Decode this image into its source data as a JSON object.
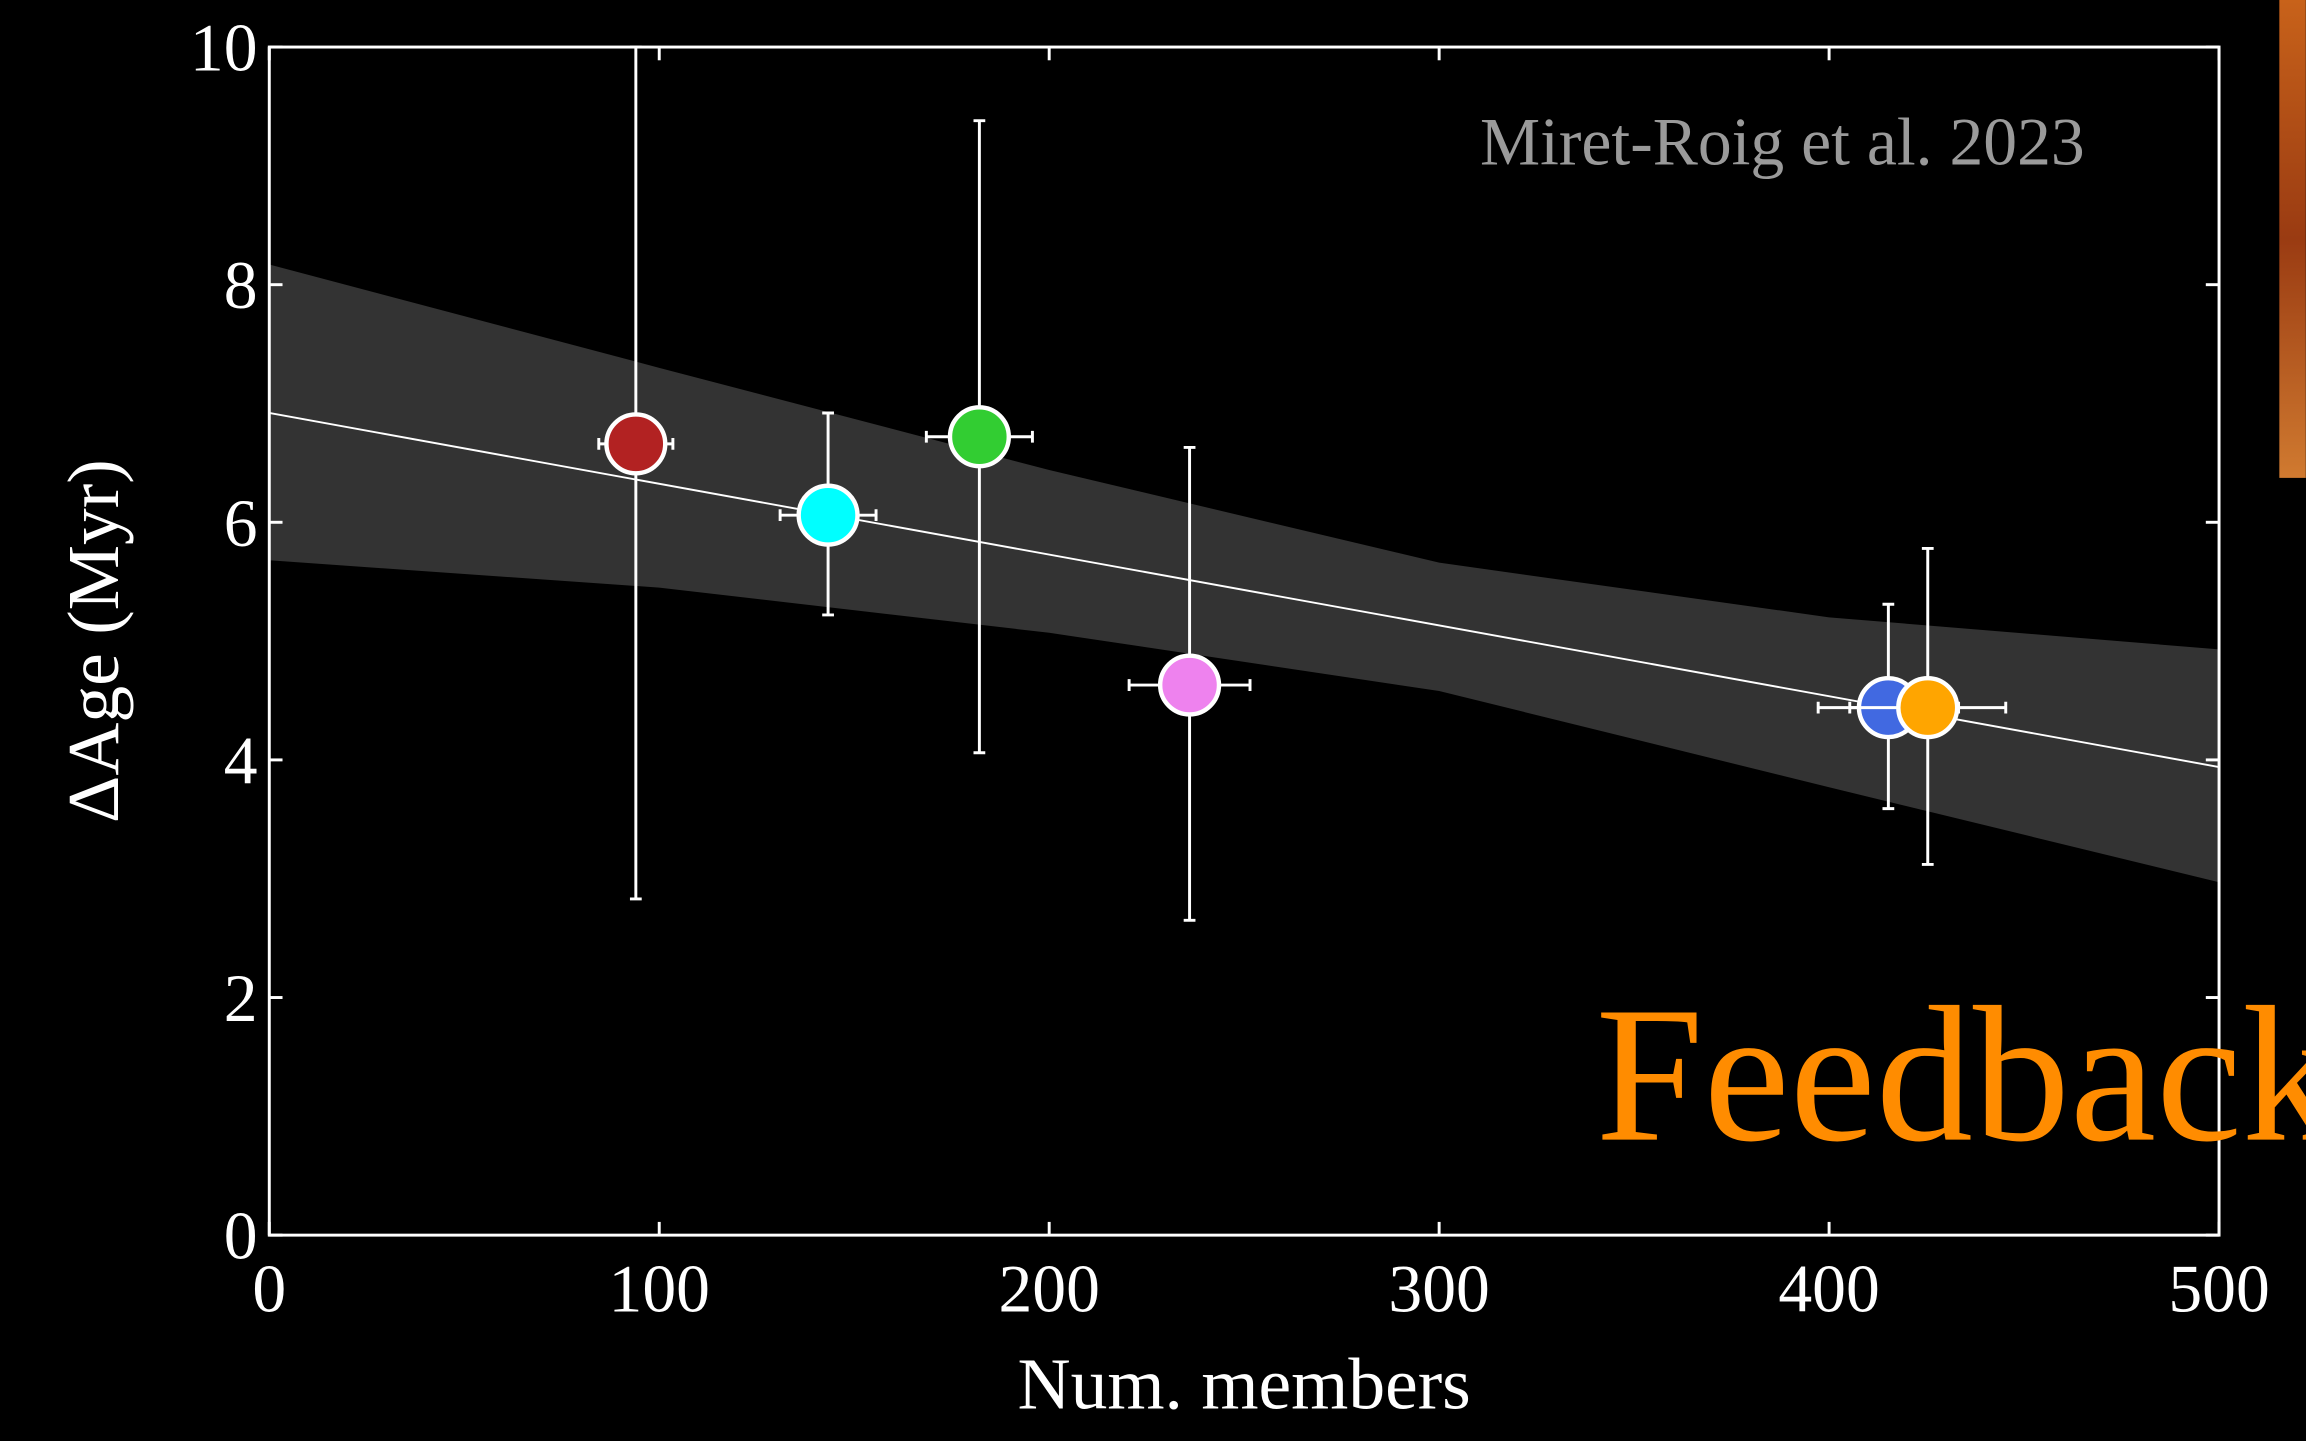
{
  "chart_data": {
    "type": "scatter",
    "xlabel": "Num. members",
    "ylabel": "ΔAge (Myr)",
    "annotation": "Miret-Roig et al. 2023",
    "overlay_text": "Feedback",
    "xlim": [
      0,
      500
    ],
    "xticks": [
      0,
      100,
      200,
      300,
      400,
      500
    ],
    "ylim": [
      0,
      10
    ],
    "yticks": [
      0,
      2,
      4,
      6,
      8,
      10
    ],
    "x": [
      94,
      143.3,
      182.1,
      236,
      415.2,
      425.3
    ],
    "values": [
      6.66,
      6.06,
      6.72,
      4.63,
      4.44,
      4.44
    ],
    "colors": [
      "#b22222",
      "#00ffff",
      "#32cd32",
      "#ee82ee",
      "#4169e1",
      "#ffa500"
    ],
    "xerr": [
      9.5,
      12.3,
      13.6,
      15.5,
      18,
      20
    ],
    "yerr_lower": [
      3.83,
      0.84,
      2.66,
      1.98,
      0.85,
      1.32
    ],
    "yerr_upper": [
      3.34,
      0.86,
      2.66,
      2.0,
      0.87,
      1.34
    ],
    "fit": {
      "x": [
        0,
        500
      ],
      "y": [
        6.92,
        3.94
      ]
    },
    "band": {
      "x": [
        0,
        100,
        200,
        300,
        400,
        500
      ],
      "upper": [
        8.17,
        7.3,
        6.44,
        5.66,
        5.2,
        4.93
      ],
      "lower": [
        5.68,
        5.45,
        5.07,
        4.58,
        3.77,
        2.97
      ]
    }
  }
}
